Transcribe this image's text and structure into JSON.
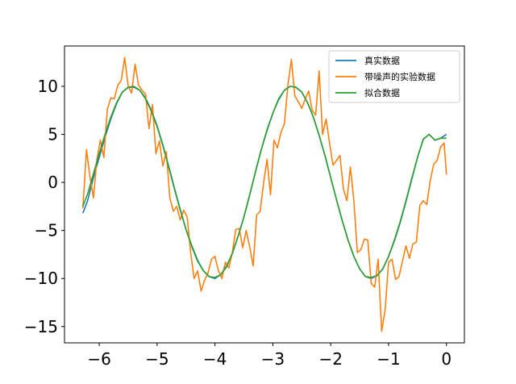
{
  "chart_data": {
    "type": "line",
    "title": "",
    "xlabel": "",
    "ylabel": "",
    "xlim": [
      -6.6,
      0.31
    ],
    "ylim": [
      -16.7,
      14.2
    ],
    "xticks": [
      -6,
      -5,
      -4,
      -3,
      -2,
      -1,
      0
    ],
    "yticks": [
      -15,
      -10,
      -5,
      0,
      5,
      10
    ],
    "xtick_labels": [
      "−6",
      "−5",
      "−4",
      "−3",
      "−2",
      "−1",
      "0"
    ],
    "ytick_labels": [
      "−15",
      "−10",
      "−5",
      "0",
      "5",
      "10"
    ],
    "legend": {
      "placement": "top-right"
    },
    "grid": false,
    "series": [
      {
        "name": "真实数据",
        "color": "#1f77b4",
        "x": [
          -6.283,
          -6.2,
          -6.1,
          -6.0,
          -5.9,
          -5.8,
          -5.7,
          -5.6,
          -5.5,
          -5.4,
          -5.3,
          -5.2,
          -5.1,
          -5.0,
          -4.9,
          -4.8,
          -4.7,
          -4.6,
          -4.5,
          -4.4,
          -4.3,
          -4.2,
          -4.1,
          -4.0,
          -3.9,
          -3.8,
          -3.7,
          -3.6,
          -3.5,
          -3.4,
          -3.3,
          -3.2,
          -3.1,
          -3.0,
          -2.9,
          -2.8,
          -2.7,
          -2.6,
          -2.5,
          -2.4,
          -2.3,
          -2.2,
          -2.1,
          -2.0,
          -1.9,
          -1.8,
          -1.7,
          -1.6,
          -1.5,
          -1.4,
          -1.3,
          -1.2,
          -1.1,
          -1.0,
          -0.9,
          -0.8,
          -0.7,
          -0.6,
          -0.5,
          -0.4,
          -0.3,
          -0.2,
          -0.1,
          0.0
        ],
        "values": [
          -3.2,
          -1.9,
          0.5,
          2.6,
          4.7,
          6.6,
          8.2,
          9.4,
          9.9,
          9.9,
          9.6,
          8.8,
          7.5,
          5.9,
          3.9,
          1.7,
          -0.6,
          -2.8,
          -4.9,
          -6.6,
          -8.1,
          -9.2,
          -9.8,
          -10.0,
          -9.6,
          -8.8,
          -7.4,
          -5.6,
          -3.6,
          -1.3,
          1.1,
          3.4,
          5.4,
          7.2,
          8.6,
          9.6,
          10.0,
          9.9,
          9.4,
          8.3,
          6.8,
          4.9,
          2.8,
          0.5,
          -1.8,
          -4.0,
          -6.0,
          -7.7,
          -9.0,
          -9.8,
          -10.0,
          -9.7,
          -9.0,
          -7.7,
          -6.1,
          -4.2,
          -2.0,
          0.3,
          2.6,
          4.5,
          5.0,
          4.4,
          4.6,
          5.0
        ]
      },
      {
        "name": "带噪声的实验数据",
        "color": "#ff7f0e",
        "x": [
          -6.283,
          -6.22,
          -6.16,
          -6.1,
          -6.04,
          -5.98,
          -5.92,
          -5.86,
          -5.8,
          -5.74,
          -5.68,
          -5.62,
          -5.56,
          -5.5,
          -5.44,
          -5.38,
          -5.32,
          -5.26,
          -5.2,
          -5.14,
          -5.08,
          -5.02,
          -4.96,
          -4.9,
          -4.84,
          -4.78,
          -4.72,
          -4.66,
          -4.6,
          -4.54,
          -4.48,
          -4.42,
          -4.36,
          -4.3,
          -4.24,
          -4.18,
          -4.12,
          -4.06,
          -4.0,
          -3.94,
          -3.88,
          -3.82,
          -3.76,
          -3.7,
          -3.64,
          -3.58,
          -3.52,
          -3.46,
          -3.4,
          -3.34,
          -3.28,
          -3.22,
          -3.16,
          -3.1,
          -3.04,
          -2.98,
          -2.92,
          -2.86,
          -2.8,
          -2.74,
          -2.68,
          -2.62,
          -2.56,
          -2.5,
          -2.44,
          -2.38,
          -2.32,
          -2.26,
          -2.2,
          -2.14,
          -2.08,
          -2.02,
          -1.96,
          -1.9,
          -1.84,
          -1.78,
          -1.72,
          -1.66,
          -1.6,
          -1.54,
          -1.48,
          -1.42,
          -1.36,
          -1.3,
          -1.24,
          -1.18,
          -1.12,
          -1.06,
          -1.0,
          -0.94,
          -0.88,
          -0.82,
          -0.76,
          -0.7,
          -0.64,
          -0.58,
          -0.52,
          -0.46,
          -0.4,
          -0.34,
          -0.28,
          -0.22,
          -0.16,
          -0.1,
          -0.04,
          0.0
        ],
        "values": [
          -2.7,
          3.4,
          0.6,
          -1.6,
          2.4,
          4.4,
          2.6,
          7.6,
          8.8,
          8.7,
          10.1,
          10.6,
          13.0,
          10.0,
          9.3,
          12.3,
          10.1,
          9.6,
          9.2,
          5.6,
          8.1,
          3.0,
          4.3,
          1.7,
          3.2,
          -1.6,
          -3.0,
          -2.5,
          -3.9,
          -2.9,
          -3.6,
          -7.3,
          -10.0,
          -9.2,
          -11.3,
          -10.2,
          -9.4,
          -8.0,
          -7.7,
          -9.2,
          -10.0,
          -8.3,
          -8.9,
          -7.3,
          -4.9,
          -4.8,
          -6.8,
          -5.0,
          -6.7,
          -8.7,
          -3.4,
          -3.0,
          -0.1,
          2.4,
          -1.3,
          4.4,
          3.6,
          5.2,
          6.1,
          10.1,
          12.8,
          9.0,
          8.4,
          7.7,
          8.7,
          9.5,
          7.5,
          7.0,
          11.6,
          5.0,
          6.6,
          4.1,
          1.8,
          2.3,
          2.8,
          -0.7,
          -1.9,
          1.6,
          -1.9,
          -7.3,
          -7.0,
          -5.9,
          -6.0,
          -10.5,
          -10.9,
          -8.0,
          -15.5,
          -13.3,
          -8.3,
          -8.0,
          -10.1,
          -9.8,
          -8.2,
          -6.6,
          -7.9,
          -6.4,
          -6.2,
          -2.4,
          -1.9,
          -2.3,
          0.2,
          1.9,
          2.3,
          3.7,
          4.1,
          0.8
        ]
      },
      {
        "name": "拟合数据",
        "color": "#2ca02c",
        "x": [
          -6.283,
          -6.2,
          -6.1,
          -6.0,
          -5.9,
          -5.8,
          -5.7,
          -5.6,
          -5.5,
          -5.4,
          -5.3,
          -5.2,
          -5.1,
          -5.0,
          -4.9,
          -4.8,
          -4.7,
          -4.6,
          -4.5,
          -4.4,
          -4.3,
          -4.2,
          -4.1,
          -4.0,
          -3.9,
          -3.8,
          -3.7,
          -3.6,
          -3.5,
          -3.4,
          -3.3,
          -3.2,
          -3.1,
          -3.0,
          -2.9,
          -2.8,
          -2.7,
          -2.6,
          -2.5,
          -2.4,
          -2.3,
          -2.2,
          -2.1,
          -2.0,
          -1.9,
          -1.8,
          -1.7,
          -1.6,
          -1.5,
          -1.4,
          -1.3,
          -1.2,
          -1.1,
          -1.0,
          -0.9,
          -0.8,
          -0.7,
          -0.6,
          -0.5,
          -0.4,
          -0.3,
          -0.2,
          -0.1,
          0.0
        ],
        "values": [
          -2.5,
          -1.2,
          0.9,
          3.0,
          5.0,
          6.8,
          8.3,
          9.4,
          9.9,
          10.0,
          9.6,
          8.7,
          7.4,
          5.8,
          3.8,
          1.6,
          -0.7,
          -2.9,
          -4.9,
          -6.7,
          -8.2,
          -9.2,
          -9.8,
          -9.9,
          -9.6,
          -8.7,
          -7.4,
          -5.6,
          -3.6,
          -1.3,
          1.1,
          3.4,
          5.5,
          7.2,
          8.7,
          9.6,
          10.0,
          9.9,
          9.4,
          8.3,
          6.8,
          4.9,
          2.8,
          0.5,
          -1.8,
          -4.0,
          -6.0,
          -7.7,
          -9.0,
          -9.8,
          -9.9,
          -9.7,
          -9.0,
          -7.7,
          -6.0,
          -4.1,
          -1.9,
          0.4,
          2.6,
          4.5,
          5.0,
          4.4,
          4.6,
          4.6
        ]
      }
    ]
  }
}
